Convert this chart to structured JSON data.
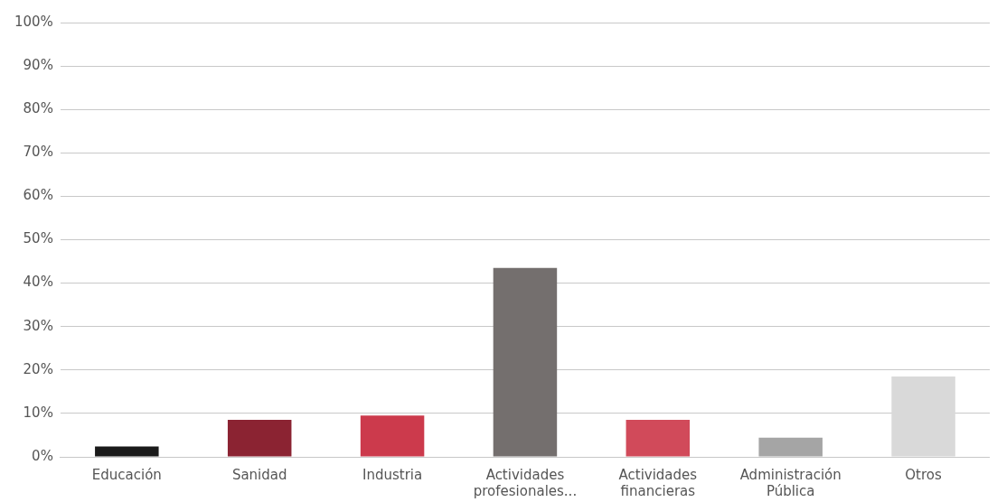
{
  "chart_data": {
    "type": "bar",
    "categories": [
      "Educación",
      "Sanidad",
      "Industria",
      "Actividades profesionales...",
      "Actividades financieras",
      "Administración Pública",
      "Otros"
    ],
    "values": [
      2.4,
      8.5,
      9.5,
      43.5,
      8.5,
      4.4,
      18.5
    ],
    "colors": [
      "#1a1a1a",
      "#8b2332",
      "#cc3a4c",
      "#746f6e",
      "#d14a5a",
      "#a5a5a5",
      "#d9d9d9"
    ],
    "ylim": [
      0,
      100
    ],
    "yticks": [
      {
        "value": 0,
        "label": "0%"
      },
      {
        "value": 10,
        "label": "10%"
      },
      {
        "value": 20,
        "label": "20%"
      },
      {
        "value": 30,
        "label": "30%"
      },
      {
        "value": 40,
        "label": "40%"
      },
      {
        "value": 50,
        "label": "50%"
      },
      {
        "value": 60,
        "label": "60%"
      },
      {
        "value": 70,
        "label": "70%"
      },
      {
        "value": 80,
        "label": "80%"
      },
      {
        "value": 90,
        "label": "90%"
      },
      {
        "value": 100,
        "label": "100%"
      }
    ],
    "grid": "y"
  }
}
